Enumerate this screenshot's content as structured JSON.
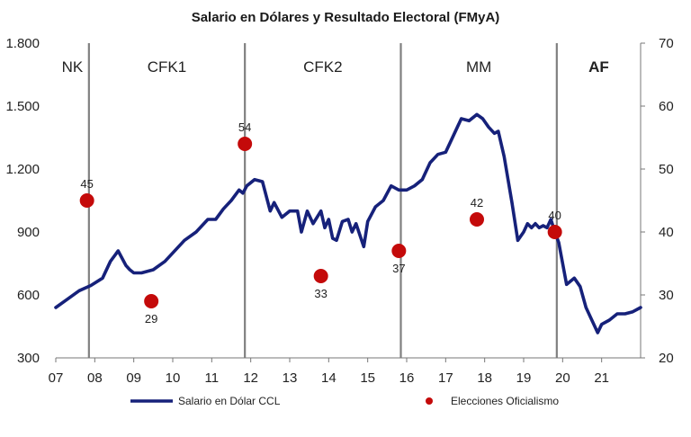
{
  "chart_data": {
    "type": "line",
    "title": "Salario en Dólares y Resultado Electoral (FMyA)",
    "x_ticks": [
      "07",
      "08",
      "09",
      "10",
      "11",
      "12",
      "13",
      "14",
      "15",
      "16",
      "17",
      "18",
      "19",
      "20",
      "21"
    ],
    "xlim": [
      2007,
      2022
    ],
    "y_left": {
      "ticks": [
        "1.800",
        "1.500",
        "1.200",
        "900",
        "600",
        "300"
      ],
      "values": [
        1800,
        1500,
        1200,
        900,
        600,
        300
      ],
      "ylim": [
        300,
        1800
      ]
    },
    "y_right": {
      "ticks": [
        "70",
        "60",
        "50",
        "40",
        "30",
        "20"
      ],
      "values": [
        70,
        60,
        50,
        40,
        30,
        20
      ],
      "ylim": [
        20,
        70
      ]
    },
    "periods": [
      {
        "label": "NK",
        "start": 2007.0,
        "end": 2007.85,
        "bold": false
      },
      {
        "label": "CFK1",
        "start": 2007.85,
        "end": 2011.85,
        "bold": false
      },
      {
        "label": "CFK2",
        "start": 2011.85,
        "end": 2015.85,
        "bold": false
      },
      {
        "label": "MM",
        "start": 2015.85,
        "end": 2019.85,
        "bold": false
      },
      {
        "label": "AF",
        "start": 2019.85,
        "end": 2022.0,
        "bold": true
      }
    ],
    "series": [
      {
        "name": "Salario en Dólar CCL",
        "axis": "left",
        "color": "#16217a",
        "x": [
          2007.0,
          2007.3,
          2007.6,
          2007.9,
          2008.2,
          2008.4,
          2008.6,
          2008.8,
          2008.9,
          2009.0,
          2009.2,
          2009.5,
          2009.8,
          2010.0,
          2010.3,
          2010.6,
          2010.9,
          2011.1,
          2011.3,
          2011.5,
          2011.7,
          2011.8,
          2011.9,
          2012.1,
          2012.3,
          2012.5,
          2012.6,
          2012.8,
          2013.0,
          2013.2,
          2013.3,
          2013.45,
          2013.6,
          2013.8,
          2013.9,
          2014.0,
          2014.1,
          2014.2,
          2014.35,
          2014.5,
          2014.6,
          2014.7,
          2014.9,
          2015.0,
          2015.2,
          2015.4,
          2015.6,
          2015.8,
          2016.0,
          2016.2,
          2016.4,
          2016.6,
          2016.8,
          2017.0,
          2017.2,
          2017.4,
          2017.6,
          2017.8,
          2017.95,
          2018.1,
          2018.25,
          2018.35,
          2018.5,
          2018.7,
          2018.85,
          2019.0,
          2019.1,
          2019.2,
          2019.3,
          2019.4,
          2019.5,
          2019.6,
          2019.7,
          2019.8,
          2019.9,
          2020.1,
          2020.3,
          2020.45,
          2020.6,
          2020.8,
          2020.9,
          2021.0,
          2021.2,
          2021.4,
          2021.6,
          2021.8,
          2022.0
        ],
        "y": [
          540,
          580,
          620,
          645,
          680,
          760,
          810,
          740,
          720,
          705,
          705,
          720,
          760,
          800,
          860,
          900,
          960,
          960,
          1010,
          1050,
          1100,
          1085,
          1120,
          1150,
          1140,
          1000,
          1040,
          970,
          1000,
          1000,
          900,
          1000,
          940,
          1000,
          920,
          960,
          870,
          860,
          950,
          960,
          900,
          940,
          830,
          950,
          1020,
          1050,
          1120,
          1100,
          1100,
          1120,
          1150,
          1230,
          1270,
          1280,
          1360,
          1440,
          1430,
          1460,
          1440,
          1400,
          1370,
          1380,
          1260,
          1040,
          860,
          900,
          940,
          920,
          940,
          920,
          930,
          920,
          960,
          900,
          850,
          650,
          680,
          640,
          540,
          460,
          420,
          460,
          480,
          510,
          510,
          520,
          540
        ]
      },
      {
        "name": "Elecciones Oficialismo",
        "axis": "right",
        "color": "#c40a0a",
        "type": "scatter",
        "x": [
          2007.8,
          2009.45,
          2011.85,
          2013.8,
          2015.8,
          2017.8,
          2019.8
        ],
        "y": [
          45,
          29,
          54,
          33,
          37,
          42,
          40
        ],
        "labels": [
          "45",
          "29",
          "54",
          "33",
          "37",
          "42",
          "40"
        ]
      }
    ],
    "legend": [
      {
        "label": "Salario en Dólar CCL",
        "kind": "line"
      },
      {
        "label": "Elecciones Oficialismo",
        "kind": "marker"
      }
    ],
    "legend_position": "bottom",
    "grid": false
  }
}
